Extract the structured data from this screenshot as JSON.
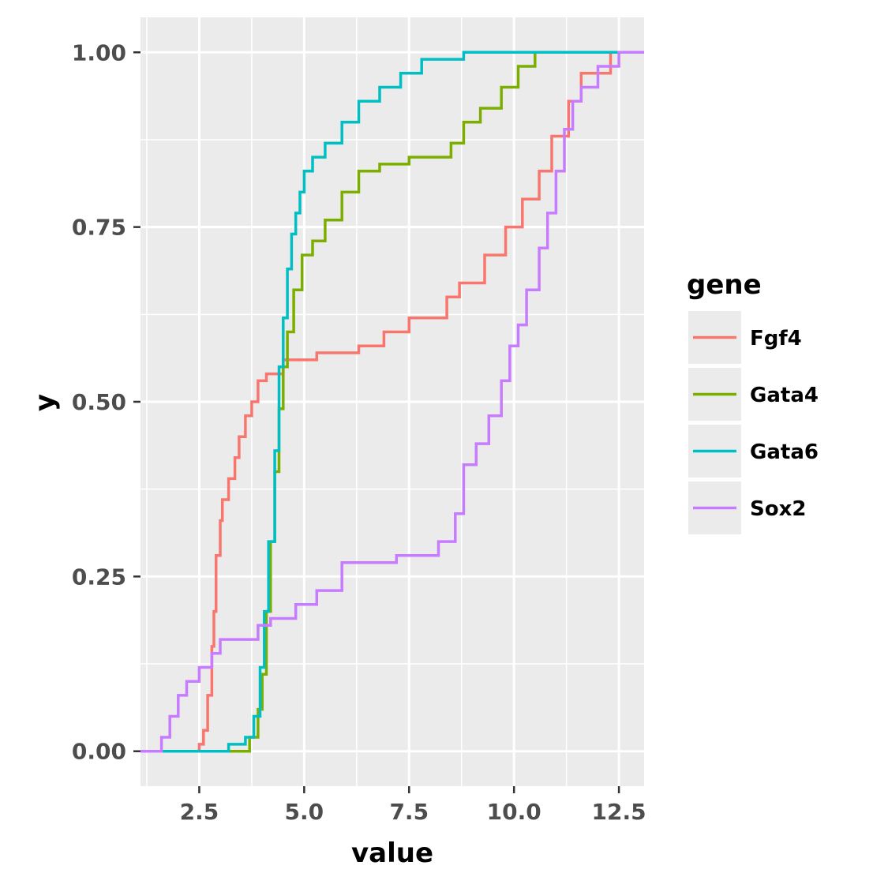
{
  "chart_data": {
    "type": "line",
    "xlabel": "value",
    "ylabel": "y",
    "xlim": [
      1.1,
      13.1
    ],
    "ylim": [
      -0.05,
      1.05
    ],
    "x_ticks": [
      2.5,
      5.0,
      7.5,
      10.0,
      12.5
    ],
    "x_tick_labels": [
      "2.5",
      "5.0",
      "7.5",
      "10.0",
      "12.5"
    ],
    "y_ticks": [
      0.0,
      0.25,
      0.5,
      0.75,
      1.0
    ],
    "y_tick_labels": [
      "0.00",
      "0.25",
      "0.50",
      "0.75",
      "1.00"
    ],
    "grid": true,
    "legend": {
      "title": "gene",
      "position": "right"
    },
    "series": [
      {
        "name": "Fgf4",
        "color": "#F8766D",
        "x": [
          1.1,
          2.5,
          2.6,
          2.7,
          2.8,
          2.85,
          2.9,
          3.0,
          3.05,
          3.2,
          3.35,
          3.45,
          3.6,
          3.75,
          3.9,
          4.1,
          4.5,
          5.3,
          6.3,
          6.9,
          7.5,
          8.4,
          8.7,
          9.3,
          9.8,
          10.2,
          10.6,
          10.9,
          11.3,
          11.6,
          12.3,
          13.1
        ],
        "y": [
          0.0,
          0.01,
          0.03,
          0.08,
          0.15,
          0.2,
          0.28,
          0.33,
          0.36,
          0.39,
          0.42,
          0.45,
          0.48,
          0.5,
          0.53,
          0.54,
          0.56,
          0.57,
          0.58,
          0.6,
          0.62,
          0.65,
          0.67,
          0.71,
          0.75,
          0.79,
          0.83,
          0.88,
          0.93,
          0.97,
          1.0,
          1.0
        ]
      },
      {
        "name": "Gata4",
        "color": "#7CAE00",
        "x": [
          1.1,
          3.5,
          3.7,
          3.9,
          4.0,
          4.1,
          4.2,
          4.3,
          4.4,
          4.5,
          4.6,
          4.75,
          4.95,
          5.2,
          5.5,
          5.9,
          6.3,
          6.8,
          7.5,
          8.5,
          8.8,
          9.2,
          9.7,
          10.1,
          10.5,
          13.1
        ],
        "y": [
          0.0,
          0.0,
          0.02,
          0.06,
          0.11,
          0.2,
          0.3,
          0.4,
          0.49,
          0.55,
          0.6,
          0.66,
          0.71,
          0.73,
          0.76,
          0.8,
          0.83,
          0.84,
          0.85,
          0.87,
          0.9,
          0.92,
          0.95,
          0.98,
          1.0,
          1.0
        ]
      },
      {
        "name": "Gata6",
        "color": "#00BFC4",
        "x": [
          1.1,
          3.2,
          3.6,
          3.8,
          3.95,
          4.05,
          4.15,
          4.3,
          4.4,
          4.5,
          4.6,
          4.7,
          4.8,
          4.9,
          5.0,
          5.2,
          5.5,
          5.9,
          6.3,
          6.8,
          7.3,
          7.8,
          8.8,
          10.2,
          13.1
        ],
        "y": [
          0.0,
          0.01,
          0.02,
          0.05,
          0.12,
          0.2,
          0.3,
          0.43,
          0.55,
          0.62,
          0.69,
          0.74,
          0.77,
          0.8,
          0.83,
          0.85,
          0.87,
          0.9,
          0.93,
          0.95,
          0.97,
          0.99,
          1.0,
          1.0,
          1.0
        ]
      },
      {
        "name": "Sox2",
        "color": "#C77CFF",
        "x": [
          1.1,
          1.6,
          1.8,
          2.0,
          2.2,
          2.5,
          2.8,
          3.0,
          3.9,
          4.2,
          4.8,
          5.3,
          5.9,
          6.5,
          7.2,
          7.8,
          8.2,
          8.6,
          8.8,
          9.1,
          9.4,
          9.7,
          9.9,
          10.1,
          10.3,
          10.6,
          10.8,
          11.0,
          11.2,
          11.4,
          11.6,
          12.0,
          12.5,
          13.1
        ],
        "y": [
          0.0,
          0.02,
          0.05,
          0.08,
          0.1,
          0.12,
          0.14,
          0.16,
          0.18,
          0.19,
          0.21,
          0.23,
          0.27,
          0.27,
          0.28,
          0.28,
          0.3,
          0.34,
          0.41,
          0.44,
          0.48,
          0.53,
          0.58,
          0.61,
          0.66,
          0.72,
          0.77,
          0.83,
          0.89,
          0.93,
          0.95,
          0.98,
          1.0,
          1.0
        ]
      }
    ]
  }
}
